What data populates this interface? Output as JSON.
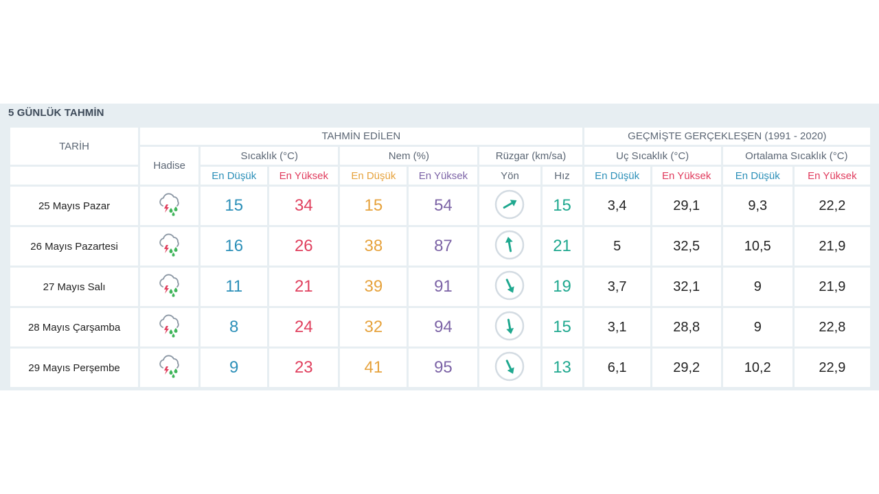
{
  "section_title": "5 GÜNLÜK TAHMİN",
  "headers": {
    "tarih": "TARİH",
    "tahmin_edilen": "TAHMİN EDİLEN",
    "gecmiste": "GEÇMİŞTE GERÇEKLEŞEN (1991 - 2020)",
    "hadise": "Hadise",
    "sicaklik": "Sıcaklık (°C)",
    "nem": "Nem (%)",
    "ruzgar": "Rüzgar (km/sa)",
    "uc_sicaklik": "Uç Sıcaklık (°C)",
    "ortalama_sicaklik": "Ortalama Sıcaklık (°C)",
    "en_dusuk": "En Düşük",
    "en_yuksek": "En Yüksek",
    "yon": "Yön",
    "hiz": "Hız"
  },
  "colors": {
    "low": "#2b8fb8",
    "high": "#e0405e",
    "humidity_low": "#e6a23c",
    "humidity_high": "#7c63a6",
    "wind": "#1fa88f",
    "panel_bg": "#e7eef2"
  },
  "icon": "thunderstorm-rain-icon",
  "rows": [
    {
      "date": "25 Mayıs Pazar",
      "temp_low": "15",
      "temp_high": "34",
      "hum_low": "15",
      "hum_high": "54",
      "wind_dir_deg": 60,
      "wind_speed": "15",
      "hist_low": "3,4",
      "hist_high": "29,1",
      "avg_low": "9,3",
      "avg_high": "22,2"
    },
    {
      "date": "26 Mayıs Pazartesi",
      "temp_low": "16",
      "temp_high": "26",
      "hum_low": "38",
      "hum_high": "87",
      "wind_dir_deg": 350,
      "wind_speed": "21",
      "hist_low": "5",
      "hist_high": "32,5",
      "avg_low": "10,5",
      "avg_high": "21,9"
    },
    {
      "date": "27 Mayıs Salı",
      "temp_low": "11",
      "temp_high": "21",
      "hum_low": "39",
      "hum_high": "91",
      "wind_dir_deg": 155,
      "wind_speed": "19",
      "hist_low": "3,7",
      "hist_high": "32,1",
      "avg_low": "9",
      "avg_high": "21,9"
    },
    {
      "date": "28 Mayıs Çarşamba",
      "temp_low": "8",
      "temp_high": "24",
      "hum_low": "32",
      "hum_high": "94",
      "wind_dir_deg": 170,
      "wind_speed": "15",
      "hist_low": "3,1",
      "hist_high": "28,8",
      "avg_low": "9",
      "avg_high": "22,8"
    },
    {
      "date": "29 Mayıs Perşembe",
      "temp_low": "9",
      "temp_high": "23",
      "hum_low": "41",
      "hum_high": "95",
      "wind_dir_deg": 155,
      "wind_speed": "13",
      "hist_low": "6,1",
      "hist_high": "29,2",
      "avg_low": "10,2",
      "avg_high": "22,9"
    }
  ]
}
